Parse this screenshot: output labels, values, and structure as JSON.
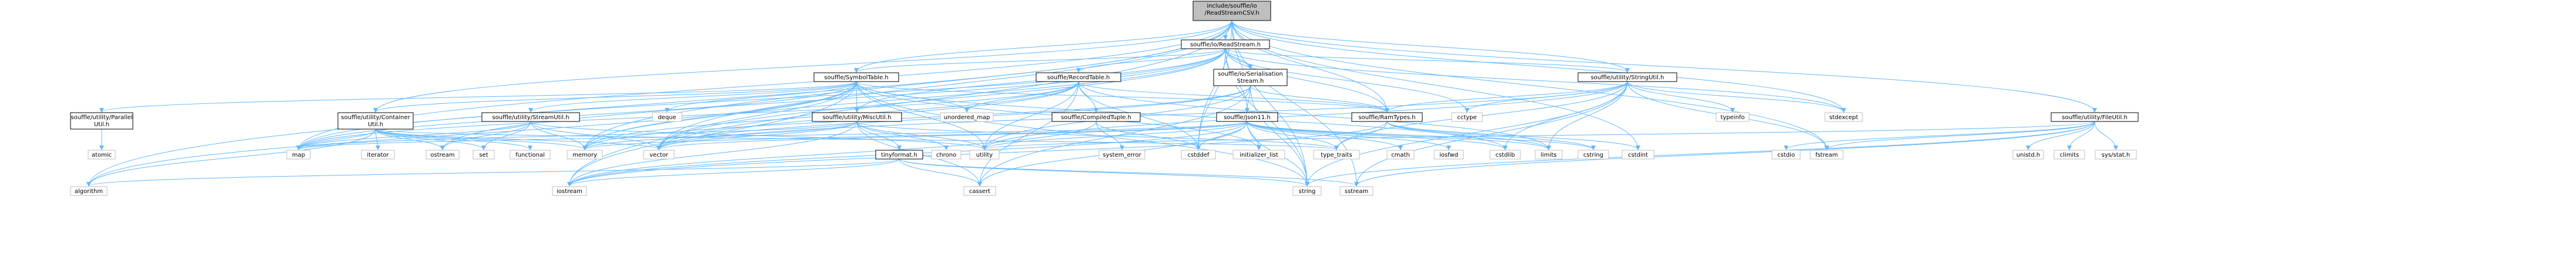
{
  "diagram": {
    "title": "",
    "nodes": [
      {
        "id": "root",
        "kind": "root",
        "lines": [
          "include/souffle/io",
          "/ReadStreamCSV.h"
        ]
      },
      {
        "id": "readstream",
        "kind": "int",
        "lines": [
          "souffle/io/ReadStream.h"
        ]
      },
      {
        "id": "symboltable",
        "kind": "int",
        "lines": [
          "souffle/SymbolTable.h"
        ]
      },
      {
        "id": "recordtable",
        "kind": "int",
        "lines": [
          "souffle/RecordTable.h"
        ]
      },
      {
        "id": "serialisation",
        "kind": "int",
        "lines": [
          "souffle/io/Serialisation",
          "Stream.h"
        ]
      },
      {
        "id": "stringutil",
        "kind": "int",
        "lines": [
          "souffle/utility/StringUtil.h"
        ]
      },
      {
        "id": "fileutil",
        "kind": "int",
        "lines": [
          "souffle/utility/FileUtil.h"
        ]
      },
      {
        "id": "parallelutil",
        "kind": "int",
        "lines": [
          "souffle/utility/Parallel",
          "Util.h"
        ]
      },
      {
        "id": "containerutil",
        "kind": "int",
        "lines": [
          "souffle/utility/Container",
          "Util.h"
        ]
      },
      {
        "id": "streamutil",
        "kind": "int",
        "lines": [
          "souffle/utility/StreamUtil.h"
        ]
      },
      {
        "id": "miscutil",
        "kind": "int",
        "lines": [
          "souffle/utility/MiscUtil.h"
        ]
      },
      {
        "id": "compiledtuple",
        "kind": "int",
        "lines": [
          "souffle/CompiledTuple.h"
        ]
      },
      {
        "id": "json11",
        "kind": "int",
        "lines": [
          "souffle/json11.h"
        ]
      },
      {
        "id": "ramtypes",
        "kind": "int",
        "lines": [
          "souffle/RamTypes.h"
        ]
      },
      {
        "id": "tinyformat",
        "kind": "int",
        "lines": [
          "tinyformat.h"
        ]
      },
      {
        "id": "atomic",
        "kind": "ext",
        "lines": [
          "atomic"
        ]
      },
      {
        "id": "deque",
        "kind": "ext",
        "lines": [
          "deque"
        ]
      },
      {
        "id": "unordered_map",
        "kind": "ext",
        "lines": [
          "unordered_map"
        ]
      },
      {
        "id": "cctype",
        "kind": "ext",
        "lines": [
          "cctype"
        ]
      },
      {
        "id": "typeinfo",
        "kind": "ext",
        "lines": [
          "typeinfo"
        ]
      },
      {
        "id": "stdexcept",
        "kind": "ext",
        "lines": [
          "stdexcept"
        ]
      },
      {
        "id": "map",
        "kind": "ext",
        "lines": [
          "map"
        ]
      },
      {
        "id": "iterator",
        "kind": "ext",
        "lines": [
          "iterator"
        ]
      },
      {
        "id": "ostream",
        "kind": "ext",
        "lines": [
          "ostream"
        ]
      },
      {
        "id": "set",
        "kind": "ext",
        "lines": [
          "set"
        ]
      },
      {
        "id": "functional",
        "kind": "ext",
        "lines": [
          "functional"
        ]
      },
      {
        "id": "memory",
        "kind": "ext",
        "lines": [
          "memory"
        ]
      },
      {
        "id": "vector",
        "kind": "ext",
        "lines": [
          "vector"
        ]
      },
      {
        "id": "chrono",
        "kind": "ext",
        "lines": [
          "chrono"
        ]
      },
      {
        "id": "utility",
        "kind": "ext",
        "lines": [
          "utility"
        ]
      },
      {
        "id": "system_error",
        "kind": "ext",
        "lines": [
          "system_error"
        ]
      },
      {
        "id": "cstddef",
        "kind": "ext",
        "lines": [
          "cstddef"
        ]
      },
      {
        "id": "initializer_list",
        "kind": "ext",
        "lines": [
          "initializer_list"
        ]
      },
      {
        "id": "type_traits",
        "kind": "ext",
        "lines": [
          "type_traits"
        ]
      },
      {
        "id": "cmath",
        "kind": "ext",
        "lines": [
          "cmath"
        ]
      },
      {
        "id": "iosfwd",
        "kind": "ext",
        "lines": [
          "iosfwd"
        ]
      },
      {
        "id": "cstdlib",
        "kind": "ext",
        "lines": [
          "cstdlib"
        ]
      },
      {
        "id": "limits",
        "kind": "ext",
        "lines": [
          "limits"
        ]
      },
      {
        "id": "cstring",
        "kind": "ext",
        "lines": [
          "cstring"
        ]
      },
      {
        "id": "cstdint",
        "kind": "ext",
        "lines": [
          "cstdint"
        ]
      },
      {
        "id": "cstdio",
        "kind": "ext",
        "lines": [
          "cstdio"
        ]
      },
      {
        "id": "fstream",
        "kind": "ext",
        "lines": [
          "fstream"
        ]
      },
      {
        "id": "unistd",
        "kind": "ext",
        "lines": [
          "unistd.h"
        ]
      },
      {
        "id": "climits",
        "kind": "ext",
        "lines": [
          "climits"
        ]
      },
      {
        "id": "sysstat",
        "kind": "ext",
        "lines": [
          "sys/stat.h"
        ]
      },
      {
        "id": "algorithm",
        "kind": "ext",
        "lines": [
          "algorithm"
        ]
      },
      {
        "id": "iostream",
        "kind": "ext",
        "lines": [
          "iostream"
        ]
      },
      {
        "id": "cassert",
        "kind": "ext",
        "lines": [
          "cassert"
        ]
      },
      {
        "id": "string",
        "kind": "ext",
        "lines": [
          "string"
        ]
      },
      {
        "id": "sstream",
        "kind": "ext",
        "lines": [
          "sstream"
        ]
      }
    ],
    "edges": [
      [
        "root",
        "readstream"
      ],
      [
        "root",
        "symboltable"
      ],
      [
        "root",
        "ramtypes"
      ],
      [
        "root",
        "stringutil"
      ],
      [
        "root",
        "fileutil"
      ],
      [
        "root",
        "containerutil"
      ],
      [
        "root",
        "map"
      ],
      [
        "root",
        "memory"
      ],
      [
        "root",
        "vector"
      ],
      [
        "root",
        "cstdint"
      ],
      [
        "root",
        "string"
      ],
      [
        "root",
        "sstream"
      ],
      [
        "root",
        "fstream"
      ],
      [
        "root",
        "algorithm"
      ],
      [
        "root",
        "iostream"
      ],
      [
        "root",
        "stdexcept"
      ],
      [
        "root",
        "cstddef"
      ],
      [
        "readstream",
        "symboltable"
      ],
      [
        "readstream",
        "recordtable"
      ],
      [
        "readstream",
        "serialisation"
      ],
      [
        "readstream",
        "ramtypes"
      ],
      [
        "readstream",
        "stringutil"
      ],
      [
        "readstream",
        "json11"
      ],
      [
        "readstream",
        "miscutil"
      ],
      [
        "readstream",
        "memory"
      ],
      [
        "readstream",
        "vector"
      ],
      [
        "readstream",
        "string"
      ],
      [
        "readstream",
        "stdexcept"
      ],
      [
        "readstream",
        "cctype"
      ],
      [
        "readstream",
        "cstddef"
      ],
      [
        "readstream",
        "map"
      ],
      [
        "readstream",
        "ostream"
      ],
      [
        "symboltable",
        "parallelutil"
      ],
      [
        "symboltable",
        "containerutil"
      ],
      [
        "symboltable",
        "miscutil"
      ],
      [
        "symboltable",
        "streamutil"
      ],
      [
        "symboltable",
        "ramtypes"
      ],
      [
        "symboltable",
        "deque"
      ],
      [
        "symboltable",
        "unordered_map"
      ],
      [
        "symboltable",
        "map"
      ],
      [
        "symboltable",
        "memory"
      ],
      [
        "symboltable",
        "vector"
      ],
      [
        "symboltable",
        "algorithm"
      ],
      [
        "symboltable",
        "iostream"
      ],
      [
        "symboltable",
        "cstdlib"
      ],
      [
        "symboltable",
        "string"
      ],
      [
        "symboltable",
        "utility"
      ],
      [
        "symboltable",
        "initializer_list"
      ],
      [
        "recordtable",
        "compiledtuple"
      ],
      [
        "recordtable",
        "ramtypes"
      ],
      [
        "recordtable",
        "unordered_map"
      ],
      [
        "recordtable",
        "vector"
      ],
      [
        "recordtable",
        "cassert"
      ],
      [
        "recordtable",
        "cstddef"
      ],
      [
        "recordtable",
        "limits"
      ],
      [
        "recordtable",
        "map"
      ],
      [
        "recordtable",
        "utility"
      ],
      [
        "recordtable",
        "memory"
      ],
      [
        "serialisation",
        "ramtypes"
      ],
      [
        "serialisation",
        "json11"
      ],
      [
        "serialisation",
        "memory"
      ],
      [
        "serialisation",
        "utility"
      ],
      [
        "serialisation",
        "cassert"
      ],
      [
        "serialisation",
        "string"
      ],
      [
        "serialisation",
        "vector"
      ],
      [
        "stringutil",
        "ramtypes"
      ],
      [
        "stringutil",
        "cctype"
      ],
      [
        "stringutil",
        "typeinfo"
      ],
      [
        "stringutil",
        "stdexcept"
      ],
      [
        "stringutil",
        "limits"
      ],
      [
        "stringutil",
        "cstdlib"
      ],
      [
        "stringutil",
        "fstream"
      ],
      [
        "stringutil",
        "sstream"
      ],
      [
        "stringutil",
        "string"
      ],
      [
        "stringutil",
        "type_traits"
      ],
      [
        "stringutil",
        "utility"
      ],
      [
        "stringutil",
        "vector"
      ],
      [
        "fileutil",
        "cstdio"
      ],
      [
        "fileutil",
        "fstream"
      ],
      [
        "fileutil",
        "unistd"
      ],
      [
        "fileutil",
        "climits"
      ],
      [
        "fileutil",
        "sysstat"
      ],
      [
        "fileutil",
        "sstream"
      ],
      [
        "fileutil",
        "string"
      ],
      [
        "fileutil",
        "utility"
      ],
      [
        "parallelutil",
        "atomic"
      ],
      [
        "containerutil",
        "map"
      ],
      [
        "containerutil",
        "iterator"
      ],
      [
        "containerutil",
        "ostream"
      ],
      [
        "containerutil",
        "set"
      ],
      [
        "containerutil",
        "functional"
      ],
      [
        "containerutil",
        "memory"
      ],
      [
        "containerutil",
        "vector"
      ],
      [
        "containerutil",
        "algorithm"
      ],
      [
        "containerutil",
        "type_traits"
      ],
      [
        "streamutil",
        "map"
      ],
      [
        "streamutil",
        "ostream"
      ],
      [
        "streamutil",
        "set"
      ],
      [
        "streamutil",
        "vector"
      ],
      [
        "streamutil",
        "memory"
      ],
      [
        "streamutil",
        "utility"
      ],
      [
        "miscutil",
        "tinyformat"
      ],
      [
        "miscutil",
        "chrono"
      ],
      [
        "miscutil",
        "utility"
      ],
      [
        "miscutil",
        "memory"
      ],
      [
        "miscutil",
        "vector"
      ],
      [
        "miscutil",
        "map"
      ],
      [
        "miscutil",
        "iostream"
      ],
      [
        "miscutil",
        "cassert"
      ],
      [
        "miscutil",
        "type_traits"
      ],
      [
        "compiledtuple",
        "system_error"
      ],
      [
        "compiledtuple",
        "cstddef"
      ],
      [
        "compiledtuple",
        "iostream"
      ],
      [
        "json11",
        "cstddef"
      ],
      [
        "json11",
        "initializer_list"
      ],
      [
        "json11",
        "type_traits"
      ],
      [
        "json11",
        "cmath"
      ],
      [
        "json11",
        "iosfwd"
      ],
      [
        "json11",
        "cstdlib"
      ],
      [
        "json11",
        "limits"
      ],
      [
        "json11",
        "cstring"
      ],
      [
        "json11",
        "string"
      ],
      [
        "json11",
        "cassert"
      ],
      [
        "json11",
        "utility"
      ],
      [
        "json11",
        "vector"
      ],
      [
        "json11",
        "memory"
      ],
      [
        "json11",
        "map"
      ],
      [
        "json11",
        "iostream"
      ],
      [
        "ramtypes",
        "cstdint"
      ],
      [
        "ramtypes",
        "cstring"
      ],
      [
        "ramtypes",
        "limits"
      ],
      [
        "ramtypes",
        "type_traits"
      ],
      [
        "ramtypes",
        "iostream"
      ],
      [
        "tinyformat",
        "algorithm"
      ],
      [
        "tinyformat",
        "iostream"
      ],
      [
        "tinyformat",
        "cassert"
      ],
      [
        "tinyformat",
        "string"
      ],
      [
        "tinyformat",
        "sstream"
      ]
    ]
  }
}
